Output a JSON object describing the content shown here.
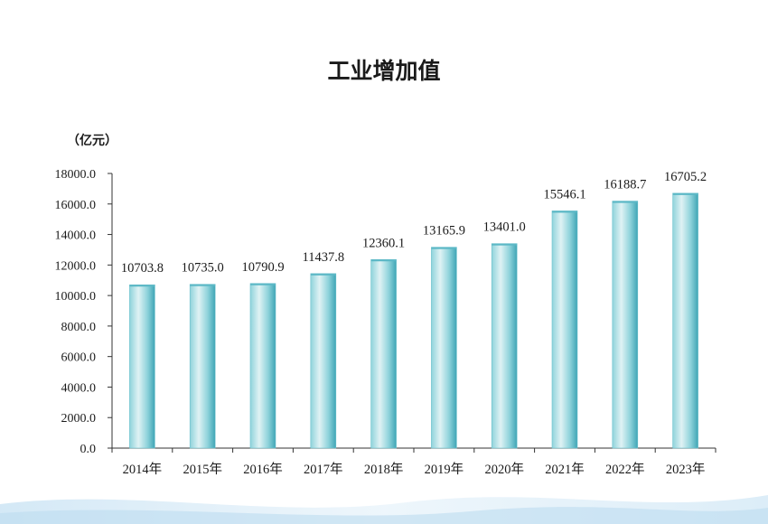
{
  "chart_data": {
    "type": "bar",
    "title": "工业增加值",
    "ylabel": "（亿元）",
    "xlabel": "",
    "categories": [
      "2014年",
      "2015年",
      "2016年",
      "2017年",
      "2018年",
      "2019年",
      "2020年",
      "2021年",
      "2022年",
      "2023年"
    ],
    "values": [
      10703.8,
      10735.0,
      10790.9,
      11437.8,
      12360.1,
      13165.9,
      13401.0,
      15546.1,
      16188.7,
      16705.2
    ],
    "data_labels": [
      "10703.8",
      "10735.0",
      "10790.9",
      "11437.8",
      "12360.1",
      "13165.9",
      "13401.0",
      "15546.1",
      "16188.7",
      "16705.2"
    ],
    "ylim": [
      0,
      18000
    ],
    "yticks": [
      "0.0",
      "2000.0",
      "4000.0",
      "6000.0",
      "8000.0",
      "10000.0",
      "12000.0",
      "14000.0",
      "16000.0",
      "18000.0"
    ],
    "grid": false,
    "legend": "none",
    "colors": {
      "bar_light": "#dff2f4",
      "bar_mid": "#8fd3db",
      "bar_dark": "#3fa5b5",
      "axis": "#333333",
      "wave": "#cfe6f5"
    }
  }
}
